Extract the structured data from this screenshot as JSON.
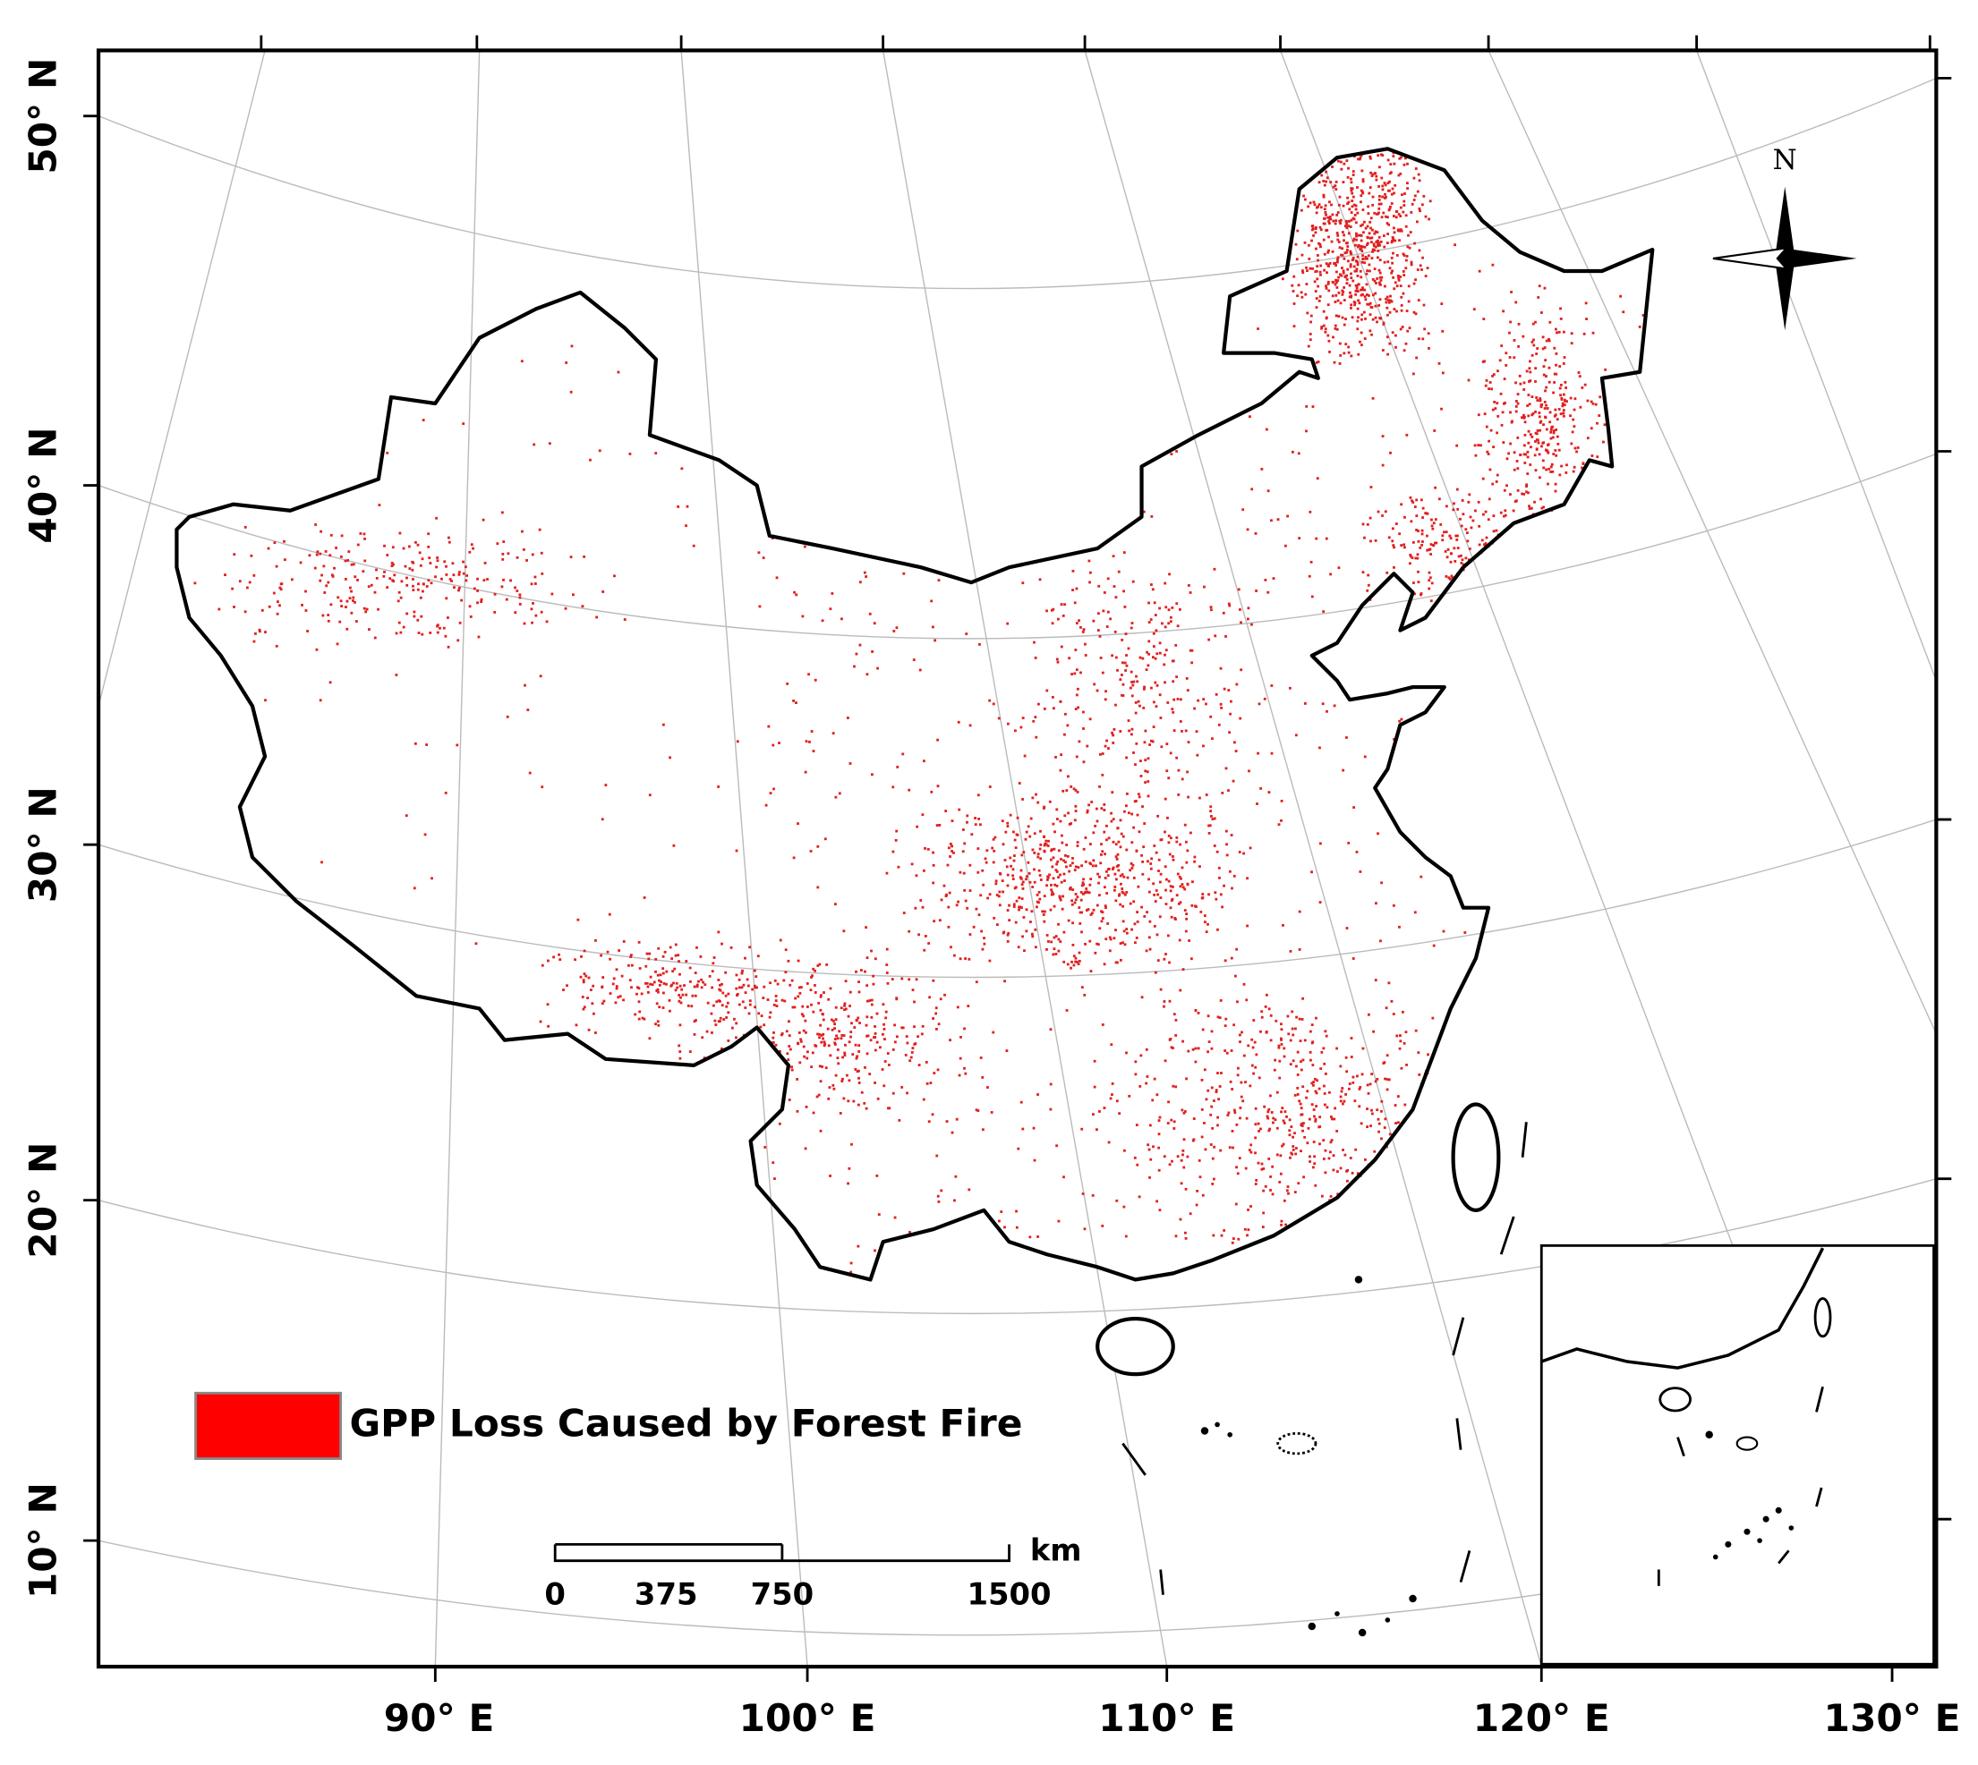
{
  "map": {
    "lat_labels": [
      "50° N",
      "40° N",
      "30° N",
      "20° N",
      "10° N"
    ],
    "lon_labels": [
      "90° E",
      "100° E",
      "110° E",
      "120° E",
      "130° E"
    ],
    "legend": "GPP Loss Caused by Forest Fire",
    "scale_bar": {
      "labels": [
        "0",
        "375",
        "750",
        "1500"
      ],
      "unit": "km"
    },
    "north": "N"
  }
}
